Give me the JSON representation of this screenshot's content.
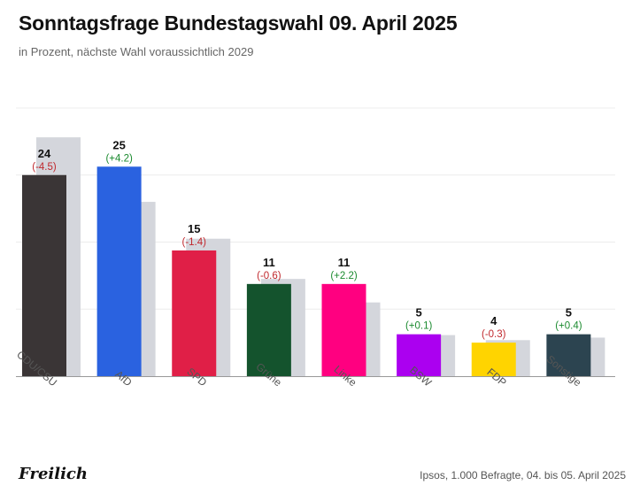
{
  "title": "Sonntagsfrage Bundestagswahl 09. April 2025",
  "subtitle": "in Prozent, nächste Wahl voraussichtlich 2029",
  "brand": "Freilich",
  "source": "Ipsos, 1.000 Befragte, 04. bis 05. April 2025",
  "colors": {
    "previous": "#d4d6dc",
    "positive": "#1a8a2e",
    "negative": "#c0282d",
    "grid": "#ececec",
    "axis": "#999999"
  },
  "chart_data": {
    "type": "bar",
    "ylim": [
      0,
      32
    ],
    "grid": true,
    "categories": [
      "CDU/CSU",
      "AfD",
      "SPD",
      "Grüne",
      "Linke",
      "BSW",
      "FDP",
      "Sonstige"
    ],
    "series": [
      {
        "values": [
          24,
          25,
          15,
          11,
          11,
          5,
          4,
          5
        ],
        "colors": [
          "#3a3536",
          "#2a62e0",
          "#e01f47",
          "#14532d",
          "#ff0080",
          "#ab00f0",
          "#ffd400",
          "#2c4450"
        ]
      },
      {
        "values": [
          28.5,
          20.8,
          16.4,
          11.6,
          8.8,
          4.9,
          4.3,
          4.6
        ]
      }
    ],
    "value_labels": [
      "24",
      "25",
      "15",
      "11",
      "11",
      "5",
      "4",
      "5"
    ],
    "change_labels": [
      "(-4.5)",
      "(+4.2)",
      "(-1.4)",
      "(-0.6)",
      "(+2.2)",
      "(+0.1)",
      "(-0.3)",
      "(+0.4)"
    ]
  }
}
